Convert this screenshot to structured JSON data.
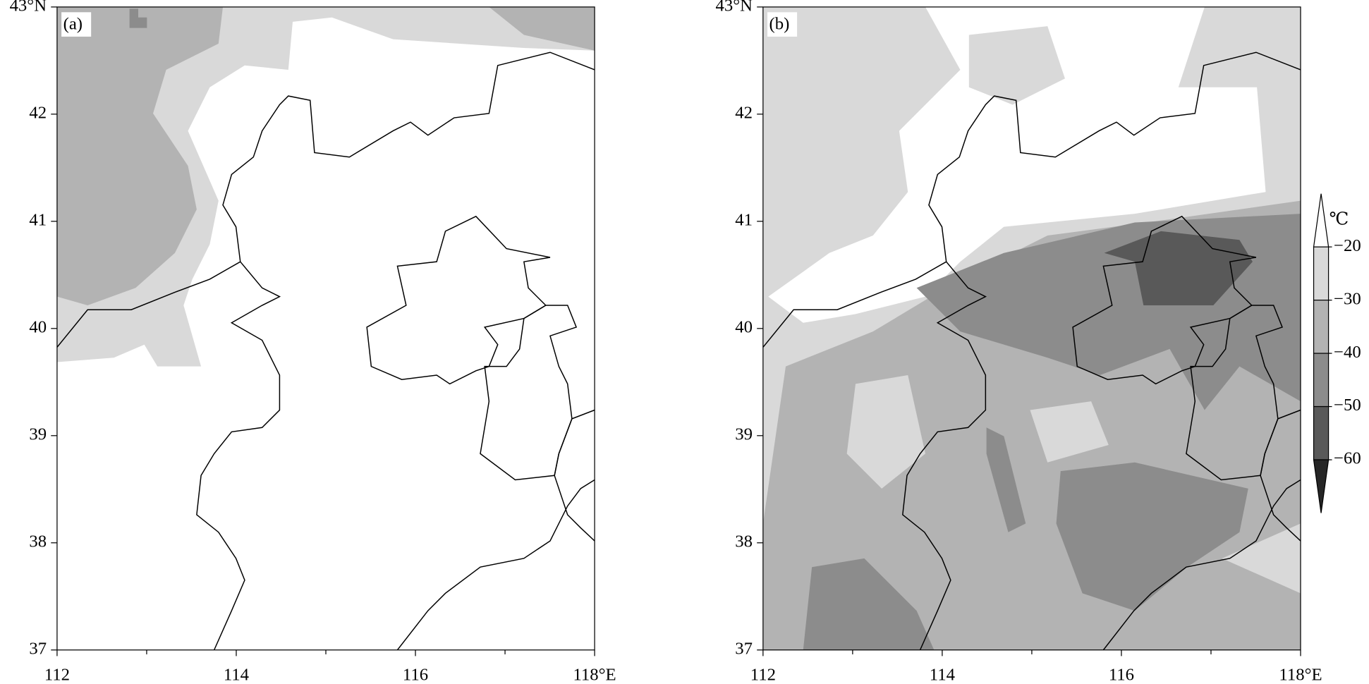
{
  "panels": [
    {
      "label": "(a)"
    },
    {
      "label": "(b)"
    }
  ],
  "axes": {
    "xlim": [
      112,
      118
    ],
    "ylim": [
      37,
      43
    ],
    "xticks": [
      112,
      114,
      116,
      {
        "value": 118,
        "label": "118°E"
      }
    ],
    "xminor": [
      113,
      115,
      117
    ],
    "yticks": [
      37,
      38,
      39,
      40,
      41,
      42,
      {
        "value": 43,
        "label": "43°N"
      }
    ]
  },
  "colorbar": {
    "unit": "℃",
    "levels": [
      {
        "value": -20,
        "label": "−20"
      },
      {
        "value": -30,
        "label": "−30"
      },
      {
        "value": -40,
        "label": "−40"
      },
      {
        "value": -50,
        "label": "−50"
      },
      {
        "value": -60,
        "label": "−60"
      }
    ],
    "colors": [
      "#ffffff",
      "#d9d9d9",
      "#b3b3b3",
      "#8c8c8c",
      "#595959",
      "#262626"
    ]
  }
}
